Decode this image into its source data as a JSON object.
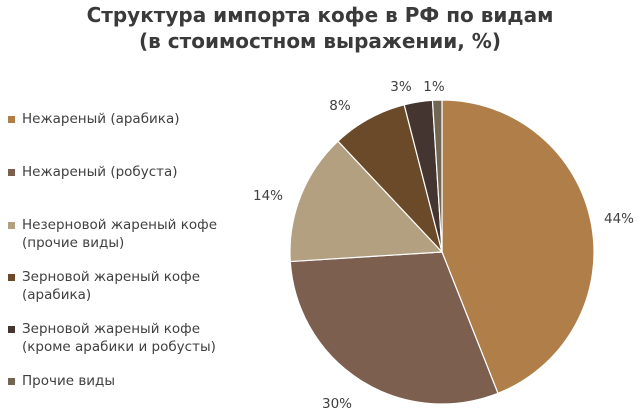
{
  "chart_data": {
    "type": "pie",
    "title": "Структура импорта кофе в РФ по видам\n(в стоимостном выражении, %)",
    "title_lines": [
      "Структура импорта кофе в РФ по видам",
      "(в стоимостном выражении, %)"
    ],
    "legend_position": "left",
    "slices": [
      {
        "name": "Нежареный (арабика)",
        "value": 44,
        "label": "44%",
        "color": "#b07e48"
      },
      {
        "name": "Нежареный (робуста)",
        "value": 30,
        "label": "30%",
        "color": "#7d5f50"
      },
      {
        "name": "Незерновой жареный кофе\n(прочие виды)",
        "value": 14,
        "label": "14%",
        "color": "#b3a080"
      },
      {
        "name": "Зерновой жареный кофе\n(арабика)",
        "value": 8,
        "label": "8%",
        "color": "#6b4a2a"
      },
      {
        "name": "Зерновой жареный кофе\n(кроме арабики и робусты)",
        "value": 3,
        "label": "3%",
        "color": "#443530"
      },
      {
        "name": "Прочие виды",
        "value": 1,
        "label": "1%",
        "color": "#716553"
      }
    ]
  }
}
